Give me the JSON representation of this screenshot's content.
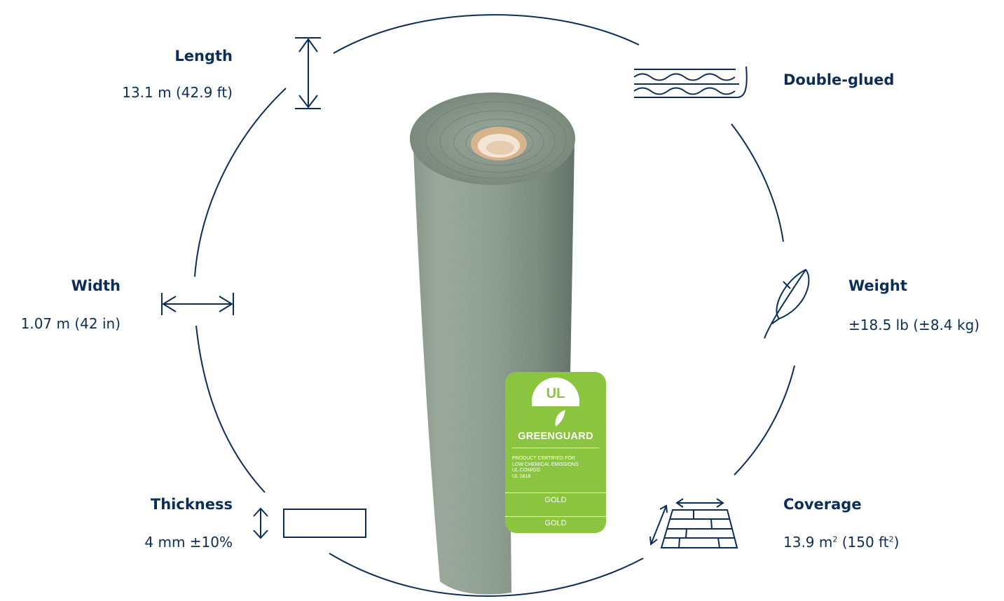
{
  "specs": {
    "length": {
      "label": "Length",
      "value": "13.1 m (42.9 ft)"
    },
    "width": {
      "label": "Width",
      "value": "1.07 m (42 in)"
    },
    "thickness": {
      "label": "Thickness",
      "value": "4 mm ±10%"
    },
    "double_glued": {
      "label": "Double-glued"
    },
    "weight": {
      "label": "Weight",
      "value": "±18.5 lb (±8.4 kg)"
    },
    "coverage": {
      "label": "Coverage",
      "value_metric": "13.9 m",
      "value_imperial_open": " (150 ft",
      "superscript": "2",
      "value_close": ")"
    }
  },
  "certification": {
    "logo_mark": "UL",
    "brand": "GREENGUARD",
    "description_lines": [
      "PRODUCT CERTIFIED FOR",
      "LOW CHEMICAL EMISSIONS",
      "UL.COM/GG",
      "UL 2818"
    ],
    "tier": "GOLD"
  },
  "colors": {
    "ink": "#0c2d57",
    "badge_green": "#8bc53f",
    "felt_green": "#6d7f70",
    "core": "#d8b48c"
  },
  "icons": [
    "length-arrow-icon",
    "width-arrow-icon",
    "thickness-icon",
    "double-glued-layers-icon",
    "feather-icon",
    "floor-coverage-icon"
  ]
}
